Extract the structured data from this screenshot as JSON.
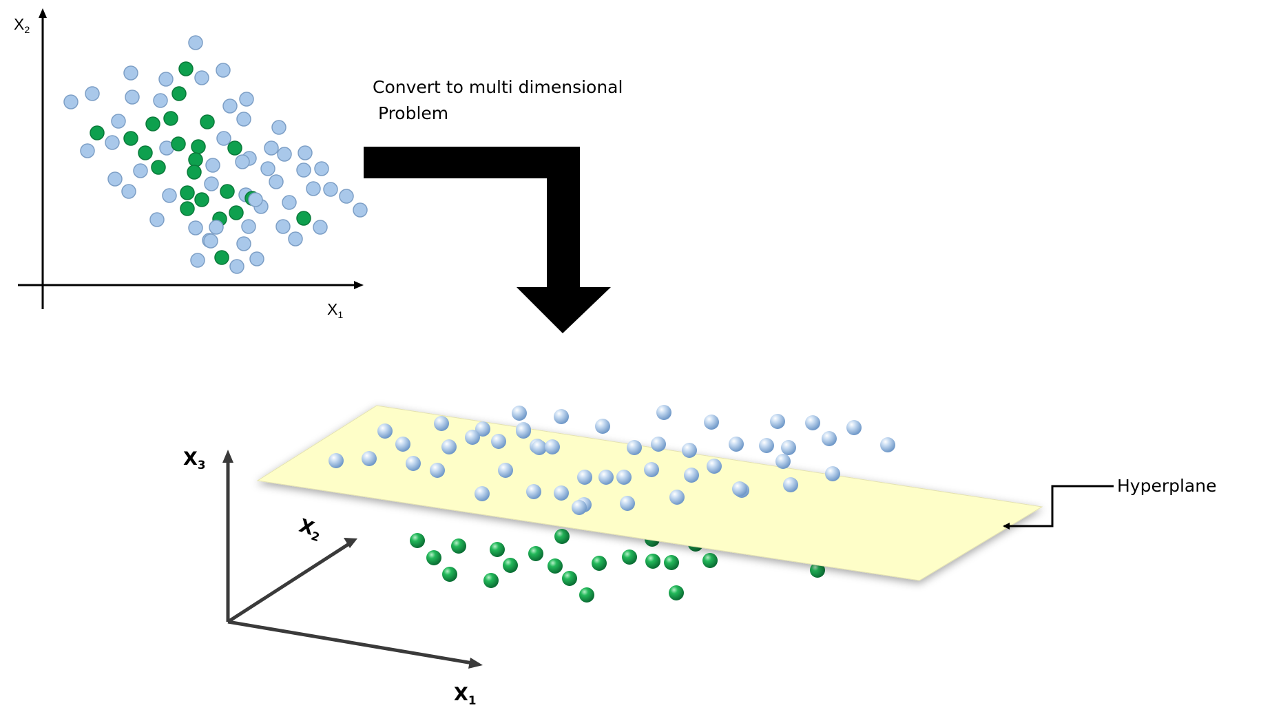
{
  "scatter_2d": {
    "x_axis": {
      "base": "X",
      "sub": "1"
    },
    "y_axis": {
      "base": "X",
      "sub": "2"
    },
    "classes": [
      {
        "name": "light-blue",
        "color": "#a9c8ea"
      },
      {
        "name": "green",
        "color": "#0ea04e"
      }
    ]
  },
  "convert_text": {
    "line1": "Convert to multi dimensional",
    "line2": " Problem"
  },
  "plot_3d": {
    "x1": {
      "base": "X",
      "sub": "1"
    },
    "x2": {
      "base": "X",
      "sub": "2"
    },
    "x3": {
      "base": "X",
      "sub": "3"
    }
  },
  "hyperplane": {
    "label": "Hyperplane",
    "color": "#fefec8"
  }
}
